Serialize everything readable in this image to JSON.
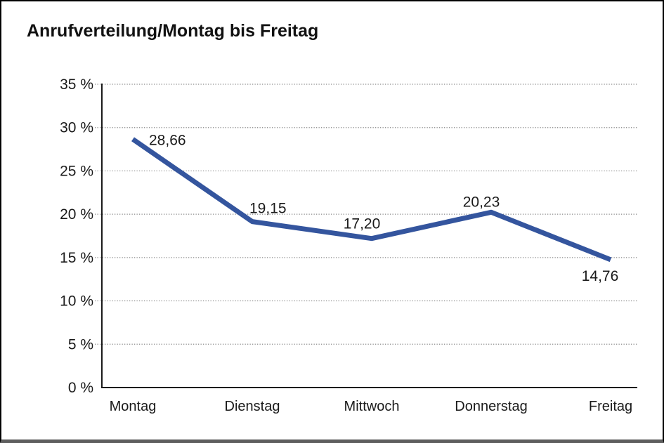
{
  "window": {
    "background": "#ffffff",
    "frame_border_color": "#000000",
    "frame_bottom_color": "#5e5e5e"
  },
  "chart_data": {
    "type": "line",
    "title": "Anrufverteilung/Montag bis Freitag",
    "categories": [
      "Montag",
      "Dienstag",
      "Mittwoch",
      "Donnerstag",
      "Freitag"
    ],
    "series": [
      {
        "name": "Anrufverteilung",
        "values": [
          28.66,
          19.15,
          17.2,
          20.23,
          14.76
        ]
      }
    ],
    "point_labels": [
      "28,66",
      "19,15",
      "17,20",
      "20,23",
      "14,76"
    ],
    "xlabel": "",
    "ylabel": "",
    "ylim": [
      0,
      35
    ],
    "y_ticks": [
      {
        "value": 0,
        "label": "0 %"
      },
      {
        "value": 5,
        "label": "5 %"
      },
      {
        "value": 10,
        "label": "10 %"
      },
      {
        "value": 15,
        "label": "15 %"
      },
      {
        "value": 20,
        "label": "20 %"
      },
      {
        "value": 25,
        "label": "25 %"
      },
      {
        "value": 30,
        "label": "30 %"
      },
      {
        "value": 35,
        "label": "35 %"
      }
    ],
    "grid": "horizontal-dotted",
    "legend": "none",
    "colors": {
      "line": "#34559E",
      "text": "#1a1a1a",
      "grid": "#8a8a8a",
      "axis": "#1a1a1a"
    }
  }
}
